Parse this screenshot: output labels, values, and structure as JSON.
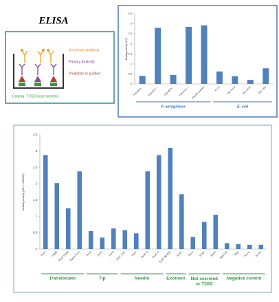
{
  "diagram": {
    "title": "ELISA",
    "labels": [
      "Secondary Antibody",
      "Primary Antibody",
      "Prediction or purified"
    ],
    "coating": "Coating : T3SS target proteins"
  },
  "chart_data": [
    {
      "type": "bar",
      "y_label": "Binding activity (A.U)",
      "color": "#4f81bd",
      "categories": [
        "Pseudom. -",
        "Pseudom. +",
        "Pseudom. -",
        "Pseudom. +",
        "Pseudo purified",
        "E.coli",
        "Rec.Ecoli",
        "Rec.Ecoli",
        "Rec.TSS"
      ],
      "values": [
        0.4,
        2.8,
        0.45,
        2.85,
        2.92,
        0.62,
        0.38,
        0.2,
        0.78
      ],
      "ylim": [
        0,
        3.5
      ],
      "yticks": [
        0,
        0.5,
        1,
        1.5,
        2,
        2.5,
        3,
        3.5
      ],
      "groups": [
        "P. aeruginosa",
        "E. coli"
      ]
    },
    {
      "type": "bar",
      "y_label": "Binding activity (OD x 1000000)",
      "color": "#4f81bd",
      "categories": [
        "PcrV",
        "PopB",
        "PcrH PopB",
        "PopN PcrV",
        "PcrV",
        "PcrG",
        "PcrG",
        "PscF 1-87",
        "PscF",
        "PscE G",
        "PscE G",
        "ExoS 96-453",
        "ExoT",
        "PscJ",
        "ExsA",
        "ExsC",
        "Bsa Ctrl",
        "Bsa",
        "Pa Ps",
        "Pa Ps"
      ],
      "values": [
        2.88,
        2.02,
        1.25,
        2.38,
        0.55,
        0.35,
        0.63,
        0.58,
        0.48,
        2.38,
        2.88,
        3.1,
        1.68,
        0.37,
        0.83,
        1.05,
        0.18,
        0.15,
        0.13,
        0.13
      ],
      "ylim": [
        0,
        3.5
      ],
      "yticks": [
        0,
        0.5,
        1,
        1.5,
        2,
        2.5,
        3,
        3.5
      ],
      "groups": [
        "Translocator",
        "Tip",
        "Needle",
        "Exotoxin",
        "Not secreted or T3SS",
        "Negative control"
      ]
    }
  ]
}
